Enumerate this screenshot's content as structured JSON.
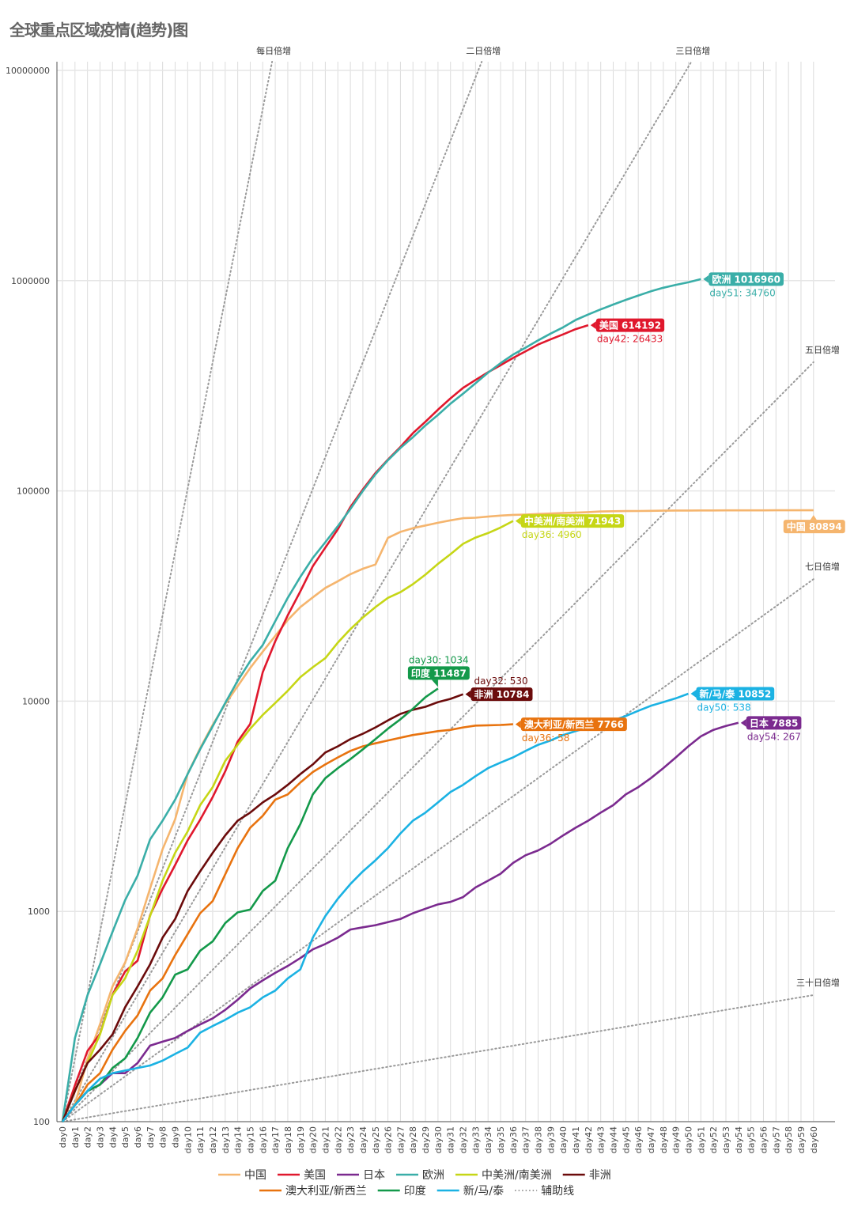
{
  "chart_data": {
    "type": "line",
    "title": "全球重点区域疫情(趋势)图",
    "xlabel": "",
    "ylabel": "",
    "y_scale": "log",
    "ylim": [
      100,
      10000000
    ],
    "y_ticks": [
      "100",
      "1000",
      "10000",
      "100000",
      "1000000",
      "10000000"
    ],
    "x_ticks": [
      "day0",
      "day1",
      "day2",
      "day3",
      "day4",
      "day5",
      "day6",
      "day7",
      "day8",
      "day9",
      "day10",
      "day11",
      "day12",
      "day13",
      "day14",
      "day15",
      "day16",
      "day17",
      "day18",
      "day19",
      "day20",
      "day21",
      "day22",
      "day23",
      "day24",
      "day25",
      "day26",
      "day27",
      "day28",
      "day29",
      "day30",
      "day31",
      "day32",
      "day33",
      "day34",
      "day35",
      "day36",
      "day37",
      "day38",
      "day39",
      "day40",
      "day41",
      "day42",
      "day43",
      "day44",
      "day45",
      "day46",
      "day47",
      "day48",
      "day49",
      "day50",
      "day51",
      "day52",
      "day53",
      "day54",
      "day55",
      "day56",
      "day57",
      "day58",
      "day59",
      "day60"
    ],
    "grid": true,
    "legend_position": "bottom",
    "series": [
      {
        "name": "中国",
        "color": "#f5b56e",
        "label": "中国 80894",
        "sub": "",
        "values": [
          100,
          121,
          198,
          291,
          440,
          571,
          830,
          1287,
          1975,
          2744,
          4515,
          5974,
          7711,
          9692,
          11791,
          14380,
          17205,
          20438,
          24324,
          28018,
          31161,
          34546,
          37198,
          40171,
          42638,
          44653,
          59804,
          63851,
          66492,
          68500,
          70548,
          72436,
          74185,
          74576,
          75465,
          76288,
          76936,
          77150,
          77658,
          78064,
          78497,
          78824,
          79251,
          79824,
          80026,
          80151,
          80270,
          80409,
          80552,
          80651,
          80695,
          80735,
          80754,
          80778,
          80793,
          80813,
          80824,
          80844,
          80860,
          80881,
          80894
        ]
      },
      {
        "name": "美国",
        "color": "#e0182d",
        "label": "美国 614192",
        "sub": "day42: 26433",
        "values": [
          100,
          149,
          217,
          262,
          402,
          518,
          583,
          959,
          1281,
          1663,
          2179,
          2727,
          3499,
          4632,
          6421,
          7783,
          13747,
          19273,
          25600,
          33276,
          43847,
          53740,
          65778,
          83836,
          101657,
          121478,
          140886,
          161807,
          188172,
          213372,
          243453,
          275586,
          308850,
          337072,
          366667,
          396223,
          429052,
          461437,
          496535,
          526396,
          555313,
          587759,
          614192
        ]
      },
      {
        "name": "日本",
        "color": "#7b2a8f",
        "label": "日本 7885",
        "sub": "day54: 267",
        "values": [
          100,
          120,
          140,
          150,
          170,
          170,
          190,
          230,
          240,
          250,
          270,
          290,
          310,
          340,
          380,
          430,
          470,
          510,
          550,
          600,
          660,
          700,
          750,
          820,
          840,
          860,
          890,
          920,
          980,
          1030,
          1080,
          1110,
          1170,
          1300,
          1400,
          1510,
          1700,
          1850,
          1950,
          2100,
          2300,
          2500,
          2700,
          2950,
          3200,
          3600,
          3900,
          4300,
          4800,
          5400,
          6100,
          6800,
          7300,
          7618,
          7885
        ]
      },
      {
        "name": "欧洲",
        "color": "#3aaea8",
        "label": "欧洲 1016960",
        "sub": "day51: 34760",
        "values": [
          100,
          250,
          400,
          560,
          800,
          1130,
          1480,
          2200,
          2700,
          3400,
          4500,
          5900,
          7600,
          9800,
          12500,
          15500,
          18500,
          24000,
          31000,
          39000,
          48000,
          57000,
          68000,
          82000,
          100000,
          120000,
          140000,
          160000,
          180000,
          205000,
          230000,
          260000,
          290000,
          325000,
          365000,
          405000,
          445000,
          480000,
          520000,
          560000,
          600000,
          650000,
          690000,
          730000,
          770000,
          810000,
          850000,
          890000,
          925000,
          955000,
          982200,
          1016960
        ]
      },
      {
        "name": "中美洲/南美洲",
        "color": "#c6d616",
        "label": "中美洲/南美洲 71943",
        "sub": "day36: 4960",
        "values": [
          100,
          140,
          190,
          260,
          400,
          480,
          650,
          950,
          1400,
          1900,
          2400,
          3200,
          3900,
          5200,
          6200,
          7400,
          8600,
          9800,
          11200,
          13000,
          14500,
          16000,
          19000,
          22000,
          25000,
          28000,
          31000,
          33000,
          36000,
          40000,
          45000,
          50000,
          56000,
          60000,
          63000,
          66983,
          71943
        ]
      },
      {
        "name": "非洲",
        "color": "#6b0b0b",
        "label": "非洲 10784",
        "sub": "day32: 530",
        "values": [
          100,
          140,
          190,
          220,
          260,
          350,
          440,
          560,
          750,
          920,
          1250,
          1550,
          1900,
          2300,
          2700,
          2950,
          3300,
          3600,
          4000,
          4500,
          5000,
          5700,
          6100,
          6600,
          7000,
          7500,
          8100,
          8700,
          9100,
          9400,
          9900,
          10254,
          10784
        ]
      },
      {
        "name": "澳大利亚/新西兰",
        "color": "#e8730f",
        "label": "澳大利亚/新西兰 7766",
        "sub": "day36: 58",
        "values": [
          100,
          120,
          150,
          170,
          220,
          270,
          320,
          420,
          480,
          620,
          780,
          980,
          1120,
          1500,
          2000,
          2500,
          2850,
          3400,
          3600,
          4100,
          4600,
          5000,
          5400,
          5800,
          6100,
          6300,
          6500,
          6700,
          6900,
          7050,
          7200,
          7300,
          7500,
          7650,
          7680,
          7708,
          7766
        ]
      },
      {
        "name": "印度",
        "color": "#13994a",
        "label": "印度 11487",
        "sub": "day30: 1034",
        "values": [
          100,
          120,
          140,
          150,
          180,
          200,
          250,
          330,
          390,
          500,
          530,
          650,
          720,
          880,
          990,
          1020,
          1250,
          1400,
          2000,
          2600,
          3600,
          4300,
          4800,
          5300,
          5900,
          6600,
          7400,
          8200,
          9200,
          10453,
          11487
        ]
      },
      {
        "name": "新/马/泰",
        "color": "#1bb2e3",
        "label": "新/马/泰 10852",
        "sub": "day50: 538",
        "values": [
          100,
          120,
          140,
          160,
          170,
          175,
          180,
          185,
          195,
          210,
          225,
          265,
          285,
          305,
          330,
          350,
          390,
          420,
          480,
          530,
          750,
          950,
          1150,
          1350,
          1550,
          1750,
          2000,
          2350,
          2700,
          2950,
          3300,
          3700,
          4000,
          4400,
          4800,
          5100,
          5400,
          5800,
          6200,
          6500,
          6900,
          7200,
          7500,
          7800,
          8100,
          8500,
          9000,
          9500,
          9900,
          10314,
          10852
        ]
      }
    ],
    "reference_lines": [
      {
        "name": "每日倍增",
        "doubling_days": 1
      },
      {
        "name": "二日倍增",
        "doubling_days": 2
      },
      {
        "name": "三日倍增",
        "doubling_days": 3
      },
      {
        "name": "五日倍增",
        "doubling_days": 5
      },
      {
        "name": "七日倍增",
        "doubling_days": 7
      },
      {
        "name": "三十日倍增",
        "doubling_days": 30
      }
    ],
    "reference_legend": "辅助线",
    "reference_color": "#9a9a9a"
  }
}
